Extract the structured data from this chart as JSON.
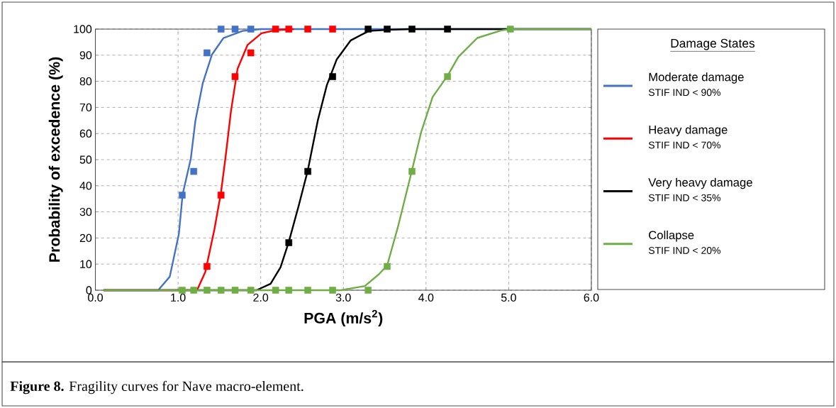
{
  "chart_data": {
    "type": "line",
    "xlabel": "PGA (m/s$^{2}$)",
    "ylabel": "Probability of excedence (%)",
    "legend_title": "Damage States",
    "xlim": [
      0,
      6
    ],
    "ylim": [
      0,
      100
    ],
    "xticks": [
      {
        "value": 0,
        "label": "0.0"
      },
      {
        "value": 1,
        "label": "1.0"
      },
      {
        "value": 2,
        "label": "2.0"
      },
      {
        "value": 3,
        "label": "3.0"
      },
      {
        "value": 4,
        "label": "4.0"
      },
      {
        "value": 5,
        "label": "5.0"
      },
      {
        "value": 6,
        "label": "6.0"
      }
    ],
    "yticks": [
      0,
      10,
      20,
      30,
      40,
      50,
      60,
      70,
      80,
      90,
      100
    ],
    "grid": true,
    "legend": "right",
    "line_style": "solid",
    "series": [
      {
        "name": "Moderate damage",
        "color": "#4472c4",
        "marker": "none",
        "x": [
          0.1,
          0.76,
          0.9,
          1.01,
          1.055,
          1.155,
          1.21,
          1.3,
          1.41,
          1.55,
          1.78,
          2.0,
          6.0
        ],
        "values": [
          0,
          0,
          5.2,
          21.5,
          36.6,
          50.5,
          64.9,
          79.4,
          90.2,
          96.6,
          99.3,
          100,
          100
        ]
      },
      {
        "name": "Heavy damage",
        "color": "#ff0000",
        "marker": "none",
        "x": [
          0.1,
          1.23,
          1.33,
          1.44,
          1.52,
          1.58,
          1.64,
          1.72,
          1.84,
          2.01,
          2.18,
          2.4
        ],
        "values": [
          0,
          0,
          7.0,
          23.3,
          37.5,
          52.3,
          68.5,
          84.8,
          93.9,
          98.4,
          99.6,
          100
        ]
      },
      {
        "name": "Very heavy damage",
        "color": "#000000",
        "marker": "none",
        "x": [
          0.1,
          1.95,
          2.12,
          2.24,
          2.34,
          2.46,
          2.57,
          2.69,
          2.8,
          2.92,
          3.09,
          3.31,
          3.53,
          3.8,
          6.0
        ],
        "values": [
          0,
          0,
          2.5,
          8.8,
          18.5,
          32.4,
          45.9,
          64.9,
          78.5,
          88.4,
          95.7,
          99.3,
          99.7,
          100,
          100
        ]
      },
      {
        "name": "Collapse",
        "color": "#70ad47",
        "marker": "none",
        "x": [
          0.1,
          2.97,
          3.26,
          3.43,
          3.53,
          3.66,
          3.83,
          3.94,
          4.08,
          4.26,
          4.39,
          4.62,
          4.91,
          5.02,
          6.0
        ],
        "values": [
          0,
          0,
          1.6,
          6.1,
          9.5,
          24.2,
          45.9,
          60.4,
          74.0,
          82.1,
          89.3,
          96.6,
          99.5,
          100,
          100
        ]
      },
      {
        "type": "scatter",
        "color": "#4472c4",
        "marker": "square",
        "x": [
          1.05,
          1.19,
          1.35,
          1.52,
          1.69,
          1.88
        ],
        "values": [
          36.4,
          45.5,
          90.9,
          100,
          100,
          100
        ]
      },
      {
        "type": "scatter",
        "color": "#ff0000",
        "marker": "square",
        "x": [
          1.35,
          1.52,
          1.69,
          1.88,
          2.18,
          2.34,
          2.57,
          2.87
        ],
        "values": [
          9.1,
          36.4,
          81.8,
          90.9,
          100,
          100,
          100,
          100
        ]
      },
      {
        "type": "scatter",
        "color": "#000000",
        "marker": "square",
        "x": [
          2.34,
          2.57,
          2.87,
          3.3,
          3.53,
          3.83,
          4.26
        ],
        "values": [
          18.2,
          45.5,
          81.8,
          100,
          100,
          100,
          100
        ]
      },
      {
        "type": "scatter",
        "color": "#70ad47",
        "marker": "square",
        "x": [
          1.05,
          1.19,
          1.35,
          1.52,
          1.69,
          1.88,
          2.18,
          2.34,
          2.57,
          2.87,
          3.3,
          3.53,
          3.83,
          4.26,
          5.02
        ],
        "values": [
          0,
          0,
          0,
          0,
          0,
          0,
          0,
          0,
          0,
          0,
          0,
          9.1,
          45.5,
          81.8,
          100
        ]
      }
    ],
    "annotations": [
      "STIF IND < 90%",
      "STIF IND < 70%",
      "STIF IND < 35%",
      "STIF IND < 20%",
      "**Figure 8.** Fragility curves for Nave macro-element."
    ]
  }
}
